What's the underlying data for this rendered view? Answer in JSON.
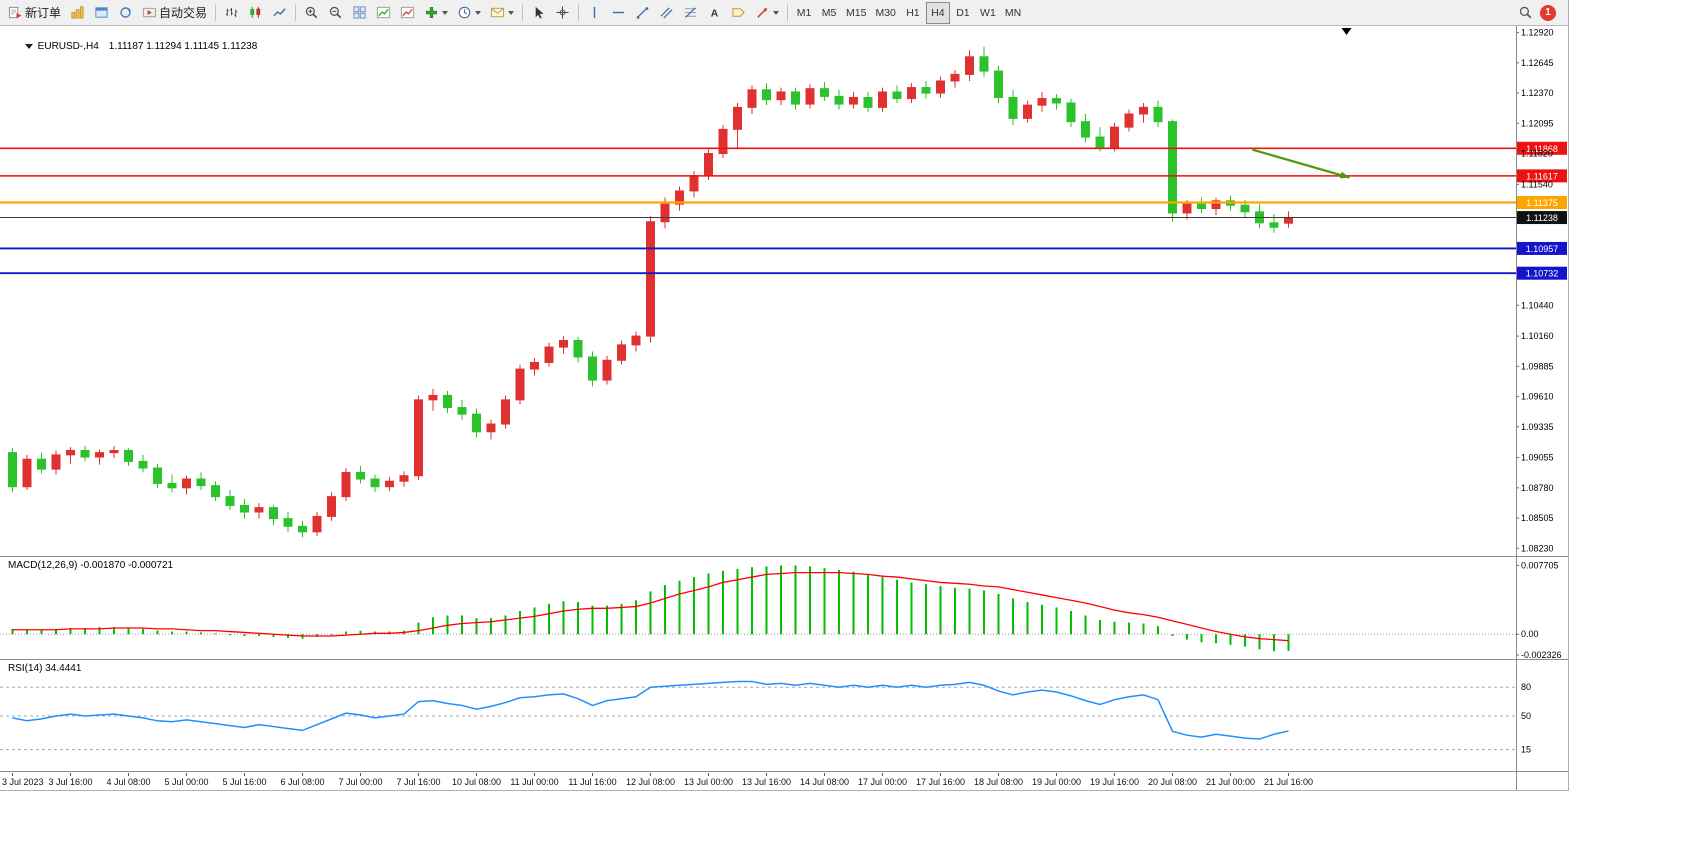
{
  "toolbar": {
    "new_order_label": "新订单",
    "autotrading_label": "自动交易",
    "timeframes": [
      "M1",
      "M5",
      "M15",
      "M30",
      "H1",
      "H4",
      "D1",
      "W1",
      "MN"
    ],
    "active_timeframe": "H4",
    "notification_badge": "1",
    "buttons": [
      {
        "name": "new-order",
        "icon": "new-order",
        "label": "新订单"
      },
      {
        "name": "open-chart",
        "icon": "chart-yellow"
      },
      {
        "name": "profiles",
        "icon": "window-blue"
      },
      {
        "name": "refresh",
        "icon": "refresh"
      },
      {
        "name": "autotrading",
        "icon": "autotrading",
        "label": "自动交易"
      },
      {
        "sep": true
      },
      {
        "name": "bar-chart",
        "icon": "bars"
      },
      {
        "name": "candlestick-chart",
        "icon": "candles"
      },
      {
        "name": "line-chart",
        "icon": "line"
      },
      {
        "sep": true
      },
      {
        "name": "zoom-in",
        "icon": "zoom-in"
      },
      {
        "name": "zoom-out",
        "icon": "zoom-out"
      },
      {
        "name": "tile-windows",
        "icon": "grid"
      },
      {
        "name": "indicator-window",
        "icon": "chart-up"
      },
      {
        "name": "template",
        "icon": "chart-up2"
      },
      {
        "name": "add-indicator",
        "icon": "plus-green",
        "caret": true
      },
      {
        "name": "periods",
        "icon": "clock",
        "caret": true
      },
      {
        "name": "alerts",
        "icon": "envelope",
        "caret": true
      },
      {
        "sep": true
      },
      {
        "name": "cursor",
        "icon": "cursor"
      },
      {
        "name": "crosshair",
        "icon": "crosshair"
      },
      {
        "sep": true
      },
      {
        "name": "vertical-line",
        "icon": "vline"
      },
      {
        "name": "horizontal-line",
        "icon": "hline"
      },
      {
        "name": "trendline",
        "icon": "trendline"
      },
      {
        "name": "equidistant-channel",
        "icon": "channel"
      },
      {
        "name": "fibonacci",
        "icon": "fibo"
      },
      {
        "name": "text",
        "icon": "textA"
      },
      {
        "name": "text-label",
        "icon": "label"
      },
      {
        "name": "arrows",
        "icon": "arrow-obj",
        "caret": true
      },
      {
        "sep": true
      }
    ],
    "right_buttons": [
      {
        "name": "search",
        "icon": "magnifier"
      }
    ]
  },
  "chart_data": [
    {
      "type": "candlestick",
      "symbol": "EURUSD",
      "timeframe": "H4",
      "title": "EURUSD-,H4",
      "ohlc_text": "1.11187 1.11294 1.11145 1.11238",
      "up_color": "#E03131",
      "down_color": "#2BC22B",
      "ylim": [
        1.0816,
        1.1298
      ],
      "y_ticks": [
        "1.12920",
        "1.12645",
        "1.12370",
        "1.12095",
        "1.11820",
        "1.11540",
        "1.10440",
        "1.10160",
        "1.09885",
        "1.09610",
        "1.09335",
        "1.09055",
        "1.08780",
        "1.08505",
        "1.08230"
      ],
      "x_label_step": 4,
      "x_labels": [
        "3 Jul 2023",
        "3 Jul 16:00",
        "4 Jul 08:00",
        "5 Jul 00:00",
        "5 Jul 16:00",
        "6 Jul 08:00",
        "7 Jul 00:00",
        "7 Jul 16:00",
        "10 Jul 08:00",
        "11 Jul 00:00",
        "11 Jul 16:00",
        "12 Jul 08:00",
        "13 Jul 00:00",
        "13 Jul 16:00",
        "14 Jul 08:00",
        "17 Jul 00:00",
        "17 Jul 16:00",
        "18 Jul 08:00",
        "19 Jul 00:00",
        "19 Jul 16:00",
        "20 Jul 08:00",
        "21 Jul 00:00",
        "21 Jul 16:00"
      ],
      "hlines": [
        {
          "price": 1.11868,
          "label": "1.11868",
          "color": "#EE1111",
          "width": 1.6
        },
        {
          "price": 1.11617,
          "label": "1.11617",
          "color": "#EE1111",
          "width": 1.6
        },
        {
          "price": 1.11375,
          "label": "1.11375",
          "color": "#FFA500",
          "width": 2.2
        },
        {
          "price": 1.11238,
          "label": "1.11238",
          "color": "#3A3A3A",
          "width": 1,
          "badge": "#111111",
          "role": "current-price"
        },
        {
          "price": 1.10957,
          "label": "1.10957",
          "color": "#1414CC",
          "width": 1.8
        },
        {
          "price": 1.10732,
          "label": "1.10732",
          "color": "#1414CC",
          "width": 1.8
        }
      ],
      "arrow": {
        "from_index": 85.5,
        "from_price": 1.11856,
        "to_index": 92.2,
        "to_price": 1.11602,
        "color": "#4E9A06"
      },
      "end_marker_index": 92,
      "candles": [
        [
          1.091,
          1.0914,
          1.0874,
          1.0879
        ],
        [
          1.0879,
          1.0908,
          1.0876,
          1.0904
        ],
        [
          1.0904,
          1.091,
          1.0891,
          1.0895
        ],
        [
          1.0895,
          1.0912,
          1.089,
          1.0908
        ],
        [
          1.0908,
          1.0915,
          1.09,
          1.0912
        ],
        [
          1.0912,
          1.0916,
          1.0902,
          1.0906
        ],
        [
          1.0906,
          1.0913,
          1.0899,
          1.091
        ],
        [
          1.091,
          1.0916,
          1.0905,
          1.0912
        ],
        [
          1.0912,
          1.0914,
          1.0898,
          1.0902
        ],
        [
          1.0902,
          1.0908,
          1.0892,
          1.0896
        ],
        [
          1.0896,
          1.09,
          1.0878,
          1.0882
        ],
        [
          1.0882,
          1.089,
          1.0874,
          1.0878
        ],
        [
          1.0878,
          1.0889,
          1.0872,
          1.0886
        ],
        [
          1.0886,
          1.0892,
          1.0876,
          1.088
        ],
        [
          1.088,
          1.0884,
          1.0866,
          1.087
        ],
        [
          1.087,
          1.0876,
          1.0858,
          1.0862
        ],
        [
          1.0862,
          1.0868,
          1.085,
          1.0856
        ],
        [
          1.0856,
          1.0864,
          1.085,
          1.086
        ],
        [
          1.086,
          1.0862,
          1.0844,
          1.085
        ],
        [
          1.085,
          1.0856,
          1.0838,
          1.0843
        ],
        [
          1.0843,
          1.0848,
          1.0833,
          1.0838
        ],
        [
          1.0838,
          1.0856,
          1.0834,
          1.0852
        ],
        [
          1.0852,
          1.0874,
          1.0848,
          1.087
        ],
        [
          1.087,
          1.0896,
          1.0866,
          1.0892
        ],
        [
          1.0892,
          1.0898,
          1.0882,
          1.0886
        ],
        [
          1.0886,
          1.089,
          1.0874,
          1.0879
        ],
        [
          1.0879,
          1.0888,
          1.0875,
          1.0884
        ],
        [
          1.0884,
          1.0893,
          1.0879,
          1.0889
        ],
        [
          1.0889,
          1.0962,
          1.0885,
          1.0958
        ],
        [
          1.0958,
          1.0968,
          1.0948,
          1.0962
        ],
        [
          1.0962,
          1.0966,
          1.0946,
          1.0951
        ],
        [
          1.0951,
          1.0958,
          1.094,
          1.0945
        ],
        [
          1.0945,
          1.095,
          1.0924,
          1.0929
        ],
        [
          1.0929,
          1.094,
          1.0922,
          1.0936
        ],
        [
          1.0936,
          1.0962,
          1.0932,
          1.0958
        ],
        [
          1.0958,
          1.099,
          1.0954,
          1.0986
        ],
        [
          1.0986,
          1.0996,
          1.098,
          1.0992
        ],
        [
          1.0992,
          1.101,
          1.0988,
          1.1006
        ],
        [
          1.1006,
          1.1016,
          1.1,
          1.1012
        ],
        [
          1.1012,
          1.1015,
          1.0992,
          1.0997
        ],
        [
          1.0997,
          1.1002,
          1.097,
          1.0976
        ],
        [
          1.0976,
          1.0998,
          1.0972,
          1.0994
        ],
        [
          1.0994,
          1.1012,
          1.099,
          1.1008
        ],
        [
          1.1008,
          1.102,
          1.1002,
          1.1016
        ],
        [
          1.1016,
          1.1125,
          1.101,
          1.112
        ],
        [
          1.112,
          1.1142,
          1.1114,
          1.1136
        ],
        [
          1.1136,
          1.1152,
          1.113,
          1.1148
        ],
        [
          1.1148,
          1.1166,
          1.1142,
          1.1162
        ],
        [
          1.1162,
          1.1186,
          1.1158,
          1.1182
        ],
        [
          1.1182,
          1.1208,
          1.1178,
          1.1204
        ],
        [
          1.1204,
          1.1228,
          1.1186,
          1.1224
        ],
        [
          1.1224,
          1.1244,
          1.1218,
          1.124
        ],
        [
          1.124,
          1.1246,
          1.1226,
          1.1231
        ],
        [
          1.1231,
          1.1242,
          1.1226,
          1.1238
        ],
        [
          1.1238,
          1.1242,
          1.1222,
          1.1227
        ],
        [
          1.1227,
          1.1245,
          1.1223,
          1.1241
        ],
        [
          1.1241,
          1.1247,
          1.123,
          1.1234
        ],
        [
          1.1234,
          1.124,
          1.1222,
          1.1227
        ],
        [
          1.1227,
          1.1238,
          1.1223,
          1.1233
        ],
        [
          1.1233,
          1.1238,
          1.122,
          1.1224
        ],
        [
          1.1224,
          1.1242,
          1.122,
          1.1238
        ],
        [
          1.1238,
          1.1244,
          1.1228,
          1.1232
        ],
        [
          1.1232,
          1.1246,
          1.1228,
          1.1242
        ],
        [
          1.1242,
          1.1248,
          1.1232,
          1.1237
        ],
        [
          1.1237,
          1.1252,
          1.1233,
          1.1248
        ],
        [
          1.1248,
          1.1258,
          1.1242,
          1.1254
        ],
        [
          1.1254,
          1.1276,
          1.1248,
          1.127
        ],
        [
          1.127,
          1.1279,
          1.1252,
          1.1257
        ],
        [
          1.1257,
          1.1262,
          1.1228,
          1.1233
        ],
        [
          1.1233,
          1.124,
          1.1208,
          1.1214
        ],
        [
          1.1214,
          1.123,
          1.121,
          1.1226
        ],
        [
          1.1226,
          1.1238,
          1.122,
          1.1232
        ],
        [
          1.1232,
          1.1236,
          1.1222,
          1.1228
        ],
        [
          1.1228,
          1.1232,
          1.1206,
          1.1211
        ],
        [
          1.1211,
          1.1218,
          1.1192,
          1.1197
        ],
        [
          1.1197,
          1.1206,
          1.1184,
          1.1188
        ],
        [
          1.1188,
          1.121,
          1.1184,
          1.1206
        ],
        [
          1.1206,
          1.1222,
          1.1202,
          1.1218
        ],
        [
          1.1218,
          1.1228,
          1.121,
          1.1224
        ],
        [
          1.1224,
          1.123,
          1.1206,
          1.1211
        ],
        [
          1.1211,
          1.1213,
          1.112,
          1.1128
        ],
        [
          1.1128,
          1.114,
          1.1122,
          1.1136
        ],
        [
          1.1136,
          1.1142,
          1.1128,
          1.1132
        ],
        [
          1.1132,
          1.1142,
          1.1126,
          1.1139
        ],
        [
          1.1139,
          1.1144,
          1.113,
          1.1135
        ],
        [
          1.1135,
          1.114,
          1.1124,
          1.1129
        ],
        [
          1.1129,
          1.1136,
          1.1114,
          1.1119
        ],
        [
          1.1119,
          1.1127,
          1.111,
          1.1115
        ],
        [
          1.11187,
          1.11294,
          1.11145,
          1.11238
        ]
      ]
    },
    {
      "type": "macd",
      "label": "MACD(12,26,9) -0.001870 -0.000721",
      "params": "12,26,9",
      "value": -0.00187,
      "signal_value": -0.000721,
      "ylim": [
        -0.002326,
        0.0082
      ],
      "y_ticks": [
        {
          "value": 0.007705,
          "label": "0.007705"
        },
        {
          "value": 0,
          "label": "0.00"
        },
        {
          "value": -0.002326,
          "label": "-0.002326"
        }
      ],
      "histogram_color": "#00BE00",
      "signal_color": "#FF0000",
      "histogram": [
        0.0006,
        0.0005,
        0.0005,
        0.0006,
        0.0007,
        0.0007,
        0.0008,
        0.0008,
        0.0007,
        0.0006,
        0.0004,
        0.0003,
        0.0003,
        0.0002,
        0.0001,
        -0.0001,
        -0.0002,
        -0.0002,
        -0.0003,
        -0.0004,
        -0.0005,
        -0.0003,
        0.0,
        0.0003,
        0.0004,
        0.0003,
        0.0003,
        0.0004,
        0.0013,
        0.0019,
        0.0021,
        0.0021,
        0.0018,
        0.0018,
        0.0021,
        0.0026,
        0.003,
        0.0034,
        0.0037,
        0.0036,
        0.0032,
        0.0032,
        0.0034,
        0.0038,
        0.0048,
        0.0055,
        0.006,
        0.0064,
        0.0068,
        0.0071,
        0.0073,
        0.0075,
        0.0076,
        0.0077,
        0.0077,
        0.0076,
        0.0074,
        0.0072,
        0.007,
        0.0067,
        0.0064,
        0.0061,
        0.0058,
        0.0056,
        0.0054,
        0.0052,
        0.0051,
        0.0049,
        0.0045,
        0.004,
        0.0036,
        0.0033,
        0.003,
        0.0026,
        0.0021,
        0.0016,
        0.0014,
        0.0013,
        0.0012,
        0.0009,
        -0.0002,
        -0.0006,
        -0.0009,
        -0.001,
        -0.0012,
        -0.0014,
        -0.0017,
        -0.0019,
        -0.00187
      ],
      "signal": [
        0.0005,
        0.0005,
        0.0005,
        0.0005,
        0.0006,
        0.0006,
        0.0006,
        0.0007,
        0.0007,
        0.0007,
        0.0006,
        0.0006,
        0.0005,
        0.0004,
        0.0004,
        0.0003,
        0.0002,
        0.0001,
        0.0,
        -0.0001,
        -0.0002,
        -0.0002,
        -0.0002,
        -0.0001,
        0.0,
        0.0001,
        0.0001,
        0.0002,
        0.0004,
        0.0007,
        0.001,
        0.0012,
        0.0013,
        0.0014,
        0.0016,
        0.0018,
        0.002,
        0.0023,
        0.0026,
        0.0028,
        0.0029,
        0.0029,
        0.003,
        0.0031,
        0.0035,
        0.004,
        0.0045,
        0.0049,
        0.0053,
        0.0058,
        0.0061,
        0.0064,
        0.0067,
        0.0068,
        0.0069,
        0.0069,
        0.0069,
        0.0069,
        0.0068,
        0.0067,
        0.0065,
        0.0064,
        0.0062,
        0.006,
        0.0058,
        0.0057,
        0.0056,
        0.0054,
        0.0053,
        0.005,
        0.0047,
        0.0044,
        0.0041,
        0.0038,
        0.0035,
        0.0031,
        0.0027,
        0.0024,
        0.0022,
        0.0019,
        0.0015,
        0.0011,
        0.0007,
        0.0003,
        0.0,
        -0.0003,
        -0.0005,
        -0.0006,
        -0.000721
      ]
    },
    {
      "type": "rsi",
      "label": "RSI(14) 34.4441",
      "period": 14,
      "value": 34.4441,
      "color": "#1E90FF",
      "levels": [
        80,
        50,
        15
      ],
      "ylim": [
        0,
        100
      ],
      "values": [
        48,
        45,
        47,
        50,
        52,
        50,
        51,
        52,
        50,
        48,
        45,
        44,
        46,
        44,
        42,
        40,
        38,
        41,
        39,
        37,
        35,
        41,
        47,
        53,
        51,
        48,
        50,
        52,
        65,
        66,
        63,
        61,
        57,
        60,
        64,
        69,
        70,
        72,
        73,
        68,
        61,
        66,
        68,
        70,
        80,
        81,
        82,
        83,
        84,
        85,
        86,
        86,
        83,
        84,
        82,
        84,
        82,
        80,
        82,
        80,
        82,
        80,
        82,
        80,
        82,
        83,
        85,
        82,
        76,
        72,
        75,
        77,
        75,
        71,
        66,
        62,
        67,
        70,
        72,
        67,
        34,
        30,
        28,
        31,
        29,
        27,
        26,
        31,
        34.44
      ]
    }
  ]
}
